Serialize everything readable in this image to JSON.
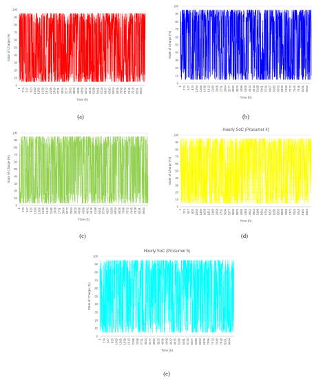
{
  "x_ticks": [
    "1",
    "274",
    "547",
    "820",
    "1093",
    "1366",
    "1639",
    "1912",
    "2185",
    "2458",
    "2731",
    "3004",
    "3277",
    "3550",
    "3823",
    "4096",
    "4369",
    "4642",
    "4915",
    "5188",
    "5461",
    "5734",
    "6007",
    "6280",
    "6553",
    "6826",
    "7099",
    "7372",
    "7645",
    "7918",
    "8191",
    "8464"
  ],
  "chart_data": [
    {
      "type": "line",
      "caption": "(a)",
      "title": "",
      "xlabel": "Time (h)",
      "ylabel": "State of Charge (%)",
      "xlim": [
        1,
        8760
      ],
      "ylim": [
        0,
        100
      ],
      "yticks": [
        0,
        10,
        20,
        30,
        40,
        50,
        60,
        70,
        80,
        90,
        100
      ],
      "grid": true,
      "color": "#ff0000",
      "series": [
        {
          "name": "",
          "points": 8760,
          "approx_min": 5,
          "approx_max": 95,
          "approx_mean": 50
        }
      ]
    },
    {
      "type": "line",
      "caption": "(b)",
      "title": "",
      "xlabel": "Time (h)",
      "ylabel": "State of Charge (%)",
      "xlim": [
        1,
        8760
      ],
      "ylim": [
        0,
        100
      ],
      "yticks": [
        0,
        10,
        20,
        30,
        40,
        50,
        60,
        70,
        80,
        90,
        100
      ],
      "grid": true,
      "color": "#0000ff",
      "series": [
        {
          "name": "",
          "points": 8760,
          "approx_min": 5,
          "approx_max": 95,
          "approx_mean": 55
        }
      ]
    },
    {
      "type": "line",
      "caption": "(c)",
      "title": "",
      "xlabel": "Time (h)",
      "ylabel": "State of Charge (%)",
      "xlim": [
        1,
        8760
      ],
      "ylim": [
        0,
        100
      ],
      "yticks": [
        0,
        10,
        20,
        30,
        40,
        50,
        60,
        70,
        80,
        90,
        100
      ],
      "grid": true,
      "color": "#92d050",
      "series": [
        {
          "name": "",
          "points": 8760,
          "approx_min": 3,
          "approx_max": 95,
          "approx_mean": 50
        }
      ]
    },
    {
      "type": "line",
      "caption": "(d)",
      "title": "Hourly SoC (Prosumer 4)",
      "xlabel": "Time (h)",
      "ylabel": "State of Charge (%)",
      "xlim": [
        1,
        8760
      ],
      "ylim": [
        0,
        100
      ],
      "yticks": [
        0,
        10,
        20,
        30,
        40,
        50,
        60,
        70,
        80,
        90,
        100
      ],
      "grid": true,
      "color": "#ffff00",
      "series": [
        {
          "name": "",
          "points": 8760,
          "approx_min": 5,
          "approx_max": 95,
          "approx_mean": 50
        }
      ]
    },
    {
      "type": "line",
      "caption": "(e)",
      "title": "Hourly SoC (Prosumer 5)",
      "xlabel": "Time (h)",
      "ylabel": "State of Charge (%)",
      "xlim": [
        1,
        8760
      ],
      "ylim": [
        0,
        100
      ],
      "yticks": [
        0,
        10,
        20,
        30,
        40,
        50,
        60,
        70,
        80,
        90,
        100
      ],
      "grid": true,
      "color": "#00ffff",
      "series": [
        {
          "name": "",
          "points": 8760,
          "approx_min": 5,
          "approx_max": 95,
          "approx_mean": 45
        }
      ]
    }
  ]
}
